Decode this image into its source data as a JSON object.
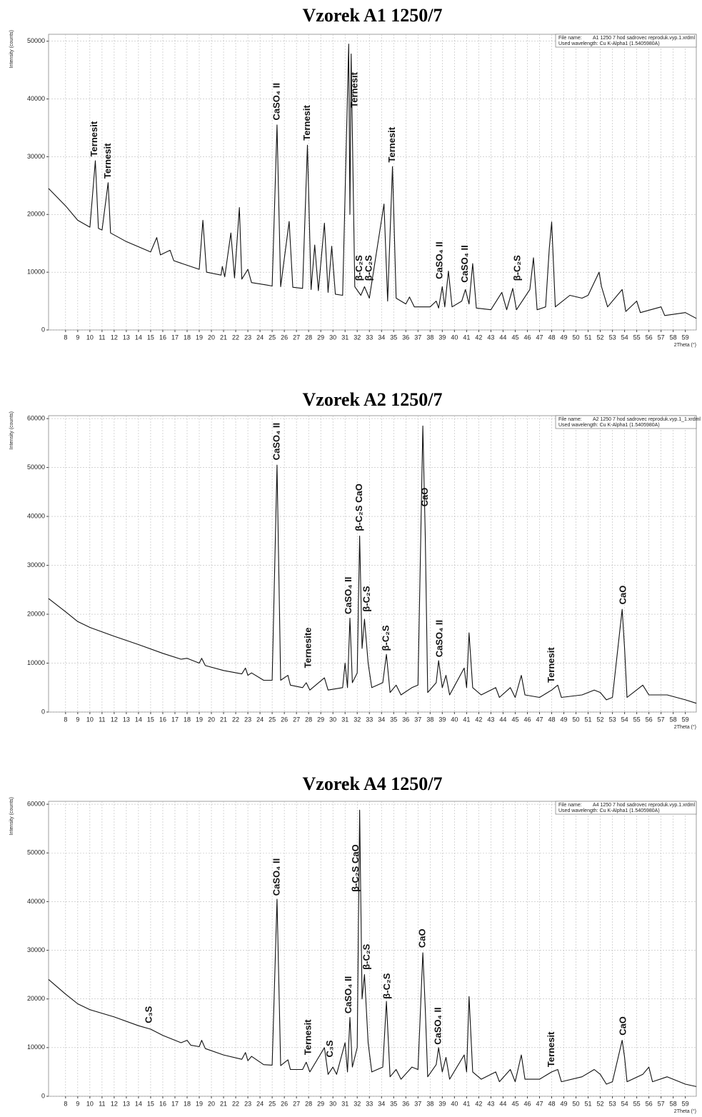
{
  "chart_data": [
    {
      "type": "line",
      "title": "Vzorek A1 1250/7",
      "x_label": "2Theta (°)",
      "y_label": "Intensity (counts)",
      "file_label": "File name:",
      "file_name": "A1 1250 7 hod sadrovec reproduk.vyp.1.xrdml",
      "wavelength": "Used wavelength: Cu K-Alpha1 (1.5405980A)",
      "xlim": [
        6.6,
        59.9
      ],
      "ylim": [
        0,
        51200
      ],
      "xticks": [
        8,
        9,
        10,
        11,
        12,
        13,
        14,
        15,
        16,
        17,
        18,
        19,
        20,
        21,
        22,
        23,
        24,
        25,
        26,
        27,
        28,
        29,
        30,
        31,
        32,
        33,
        34,
        35,
        36,
        37,
        38,
        39,
        40,
        41,
        42,
        43,
        44,
        45,
        46,
        47,
        48,
        49,
        50,
        51,
        52,
        53,
        54,
        55,
        56,
        57,
        58,
        59
      ],
      "yticks": [
        0,
        10000,
        20000,
        30000,
        40000,
        50000
      ],
      "grid": true,
      "color": "#111",
      "x": [
        6.6,
        8,
        9,
        10,
        10.45,
        10.7,
        11,
        11.5,
        11.7,
        13,
        15,
        15.5,
        15.8,
        16.6,
        16.9,
        18,
        19,
        19.3,
        19.6,
        20.8,
        20.9,
        21.1,
        21.6,
        21.9,
        22.3,
        22.5,
        23,
        23.3,
        24.5,
        25,
        25.4,
        25.7,
        26.4,
        26.7,
        27.5,
        27.9,
        28.2,
        28.5,
        28.8,
        29.3,
        29.6,
        29.9,
        30.2,
        30.8,
        31.3,
        31.4,
        31.5,
        31.8,
        32.3,
        32.6,
        33,
        34.2,
        34.5,
        34.9,
        35.2,
        36,
        36.3,
        36.7,
        38,
        38.5,
        38.7,
        39,
        39.2,
        39.5,
        39.8,
        40.6,
        40.9,
        41.2,
        41.5,
        41.8,
        43,
        43.9,
        44.3,
        44.8,
        45.1,
        46.2,
        46.5,
        46.8,
        47.5,
        47.8,
        48,
        48.3,
        49.5,
        50.5,
        51,
        51.9,
        52.1,
        52.6,
        53.8,
        54.1,
        55,
        55.3,
        57,
        57.3,
        59,
        59.9
      ],
      "values": [
        24500,
        21500,
        19000,
        17800,
        29300,
        17600,
        17300,
        25500,
        16800,
        15300,
        13500,
        16000,
        13000,
        13800,
        12000,
        11200,
        10500,
        19000,
        10000,
        9500,
        11000,
        9200,
        16800,
        9000,
        21200,
        8800,
        10500,
        8200,
        7800,
        7600,
        35500,
        7500,
        18800,
        7400,
        7200,
        32000,
        7000,
        14700,
        6800,
        18500,
        6500,
        14500,
        6200,
        6000,
        49500,
        20000,
        47800,
        7500,
        6000,
        7500,
        5500,
        21800,
        5000,
        28300,
        5500,
        4500,
        5700,
        4000,
        4000,
        5000,
        3800,
        7500,
        4000,
        10200,
        4000,
        5000,
        7000,
        4500,
        11500,
        3800,
        3500,
        6500,
        3500,
        7200,
        3500,
        7000,
        12500,
        3500,
        4000,
        14000,
        18700,
        4000,
        6000,
        5500,
        6000,
        10000,
        7500,
        4000,
        7000,
        3200,
        5000,
        3000,
        4000,
        2500,
        3000,
        2000
      ],
      "annotations": [
        {
          "text": "Ternesit",
          "x": 10.4,
          "y": 30000
        },
        {
          "text": "Ternesit",
          "x": 11.5,
          "y": 26200
        },
        {
          "text": "CaSO₄ II",
          "x": 25.4,
          "y": 36300
        },
        {
          "text": "Ternesit",
          "x": 27.9,
          "y": 32800
        },
        {
          "text": "Ternesit",
          "x": 31.8,
          "y": 38500
        },
        {
          "text": "β-C₂S",
          "x": 32.2,
          "y": 8500
        },
        {
          "text": "β-C₂S",
          "x": 33,
          "y": 8500
        },
        {
          "text": "Ternesit",
          "x": 34.9,
          "y": 29000
        },
        {
          "text": "CaSO₄ II",
          "x": 38.8,
          "y": 8800
        },
        {
          "text": "CaSO₄ II",
          "x": 40.9,
          "y": 8200
        },
        {
          "text": "β-C₂S",
          "x": 45.2,
          "y": 8500
        }
      ]
    },
    {
      "type": "line",
      "title": "Vzorek A2 1250/7",
      "x_label": "2Theta (°)",
      "y_label": "Intensity (counts)",
      "file_label": "File name:",
      "file_name": "A2 1250 7 hod sadrovec reproduk.vyp.1_1.xrdml",
      "wavelength": "Used wavelength: Cu K-Alpha1 (1.5405980A)",
      "xlim": [
        6.6,
        59.9
      ],
      "ylim": [
        0,
        60600
      ],
      "xticks": [
        8,
        9,
        10,
        11,
        12,
        13,
        14,
        15,
        16,
        17,
        18,
        19,
        20,
        21,
        22,
        23,
        24,
        25,
        26,
        27,
        28,
        29,
        30,
        31,
        32,
        33,
        34,
        35,
        36,
        37,
        38,
        39,
        40,
        41,
        42,
        43,
        44,
        45,
        46,
        47,
        48,
        49,
        50,
        51,
        52,
        53,
        54,
        55,
        56,
        57,
        58,
        59
      ],
      "yticks": [
        0,
        10000,
        20000,
        30000,
        40000,
        50000,
        60000
      ],
      "grid": true,
      "color": "#111",
      "x": [
        6.6,
        8,
        9,
        10,
        12,
        14,
        16,
        17.5,
        18,
        19,
        19.2,
        19.5,
        21,
        22.5,
        22.8,
        23,
        23.3,
        24.3,
        25,
        25.4,
        25.7,
        26.3,
        26.5,
        27.5,
        27.8,
        28.1,
        29.3,
        29.6,
        30.8,
        31,
        31.2,
        31.4,
        31.6,
        32,
        32.2,
        32.4,
        32.6,
        32.9,
        33.2,
        34.1,
        34.4,
        34.7,
        35.2,
        35.6,
        36.5,
        37,
        37.4,
        37.6,
        37.8,
        38.5,
        38.7,
        39,
        39.3,
        39.6,
        40.8,
        41,
        41.2,
        41.5,
        42.2,
        43.4,
        43.7,
        44.6,
        45,
        45.5,
        45.8,
        47,
        48,
        48.5,
        48.8,
        50.5,
        51.5,
        52,
        52.5,
        53,
        53.8,
        54,
        54.2,
        55.5,
        56,
        57.5,
        59,
        59.9
      ],
      "values": [
        23200,
        20500,
        18500,
        17300,
        15500,
        13800,
        12000,
        10800,
        11000,
        10000,
        11000,
        9500,
        8500,
        7800,
        9000,
        7500,
        8000,
        6500,
        6500,
        50500,
        6500,
        7500,
        5500,
        5000,
        6000,
        4500,
        7000,
        4500,
        5000,
        10000,
        5000,
        19200,
        6000,
        8000,
        36000,
        13000,
        19000,
        10000,
        5000,
        6000,
        11800,
        4000,
        5500,
        3500,
        5000,
        5500,
        58500,
        36000,
        4000,
        6000,
        10500,
        5000,
        7500,
        3500,
        9000,
        5000,
        16200,
        5000,
        3500,
        5000,
        3000,
        5000,
        3000,
        7500,
        3500,
        3000,
        4500,
        5500,
        3000,
        3500,
        4500,
        4000,
        2500,
        3000,
        21000,
        13000,
        3000,
        5500,
        3500,
        3500,
        2500,
        1800
      ],
      "annotations": [
        {
          "text": "CaSO₄ II",
          "x": 25.4,
          "y": 51500
        },
        {
          "text": "Ternesite",
          "x": 28,
          "y": 9000
        },
        {
          "text": "CaSO₄ II",
          "x": 31.3,
          "y": 20000
        },
        {
          "text": "β-C₂S CaO",
          "x": 32.2,
          "y": 37000
        },
        {
          "text": "β-C₂S",
          "x": 32.8,
          "y": 20500
        },
        {
          "text": "β-C₂S",
          "x": 34.4,
          "y": 12500
        },
        {
          "text": "CaO",
          "x": 37.6,
          "y": 42000
        },
        {
          "text": "CaSO₄ II",
          "x": 38.8,
          "y": 11200
        },
        {
          "text": "Ternesit",
          "x": 48,
          "y": 6000
        },
        {
          "text": "CaO",
          "x": 53.9,
          "y": 22000
        }
      ]
    },
    {
      "type": "line",
      "title": "Vzorek A4 1250/7",
      "x_label": "2Theta (°)",
      "y_label": "Intensity (counts)",
      "file_label": "File name:",
      "file_name": "A4 1250 7 hod sadrovec reproduk.vyp.1.xrdml",
      "wavelength": "Used wavelength: Cu K-Alpha1 (1.5405980A)",
      "xlim": [
        6.6,
        59.9
      ],
      "ylim": [
        0,
        60600
      ],
      "xticks": [
        8,
        9,
        10,
        11,
        12,
        13,
        14,
        15,
        16,
        17,
        18,
        19,
        20,
        21,
        22,
        23,
        24,
        25,
        26,
        27,
        28,
        29,
        30,
        31,
        32,
        33,
        34,
        35,
        36,
        37,
        38,
        39,
        40,
        41,
        42,
        43,
        44,
        45,
        46,
        47,
        48,
        49,
        50,
        51,
        52,
        53,
        54,
        55,
        56,
        57,
        58,
        59
      ],
      "yticks": [
        0,
        10000,
        20000,
        30000,
        40000,
        50000,
        60000
      ],
      "grid": true,
      "color": "#111",
      "x": [
        6.6,
        8,
        9,
        10,
        12,
        14,
        15,
        16,
        17.5,
        18,
        18.3,
        19,
        19.2,
        19.5,
        21,
        22.5,
        22.8,
        23,
        23.3,
        24.3,
        25,
        25.4,
        25.7,
        26.3,
        26.5,
        27.5,
        27.8,
        28.1,
        29.3,
        29.6,
        30,
        30.3,
        31,
        31.2,
        31.4,
        31.6,
        32,
        32.2,
        32.4,
        32.6,
        32.9,
        33.2,
        34.1,
        34.4,
        34.7,
        35.2,
        35.6,
        36.5,
        37,
        37.4,
        37.6,
        37.8,
        38.5,
        38.7,
        39,
        39.3,
        39.6,
        40.8,
        41,
        41.2,
        41.5,
        42.2,
        43.4,
        43.7,
        44.6,
        45,
        45.5,
        45.8,
        47,
        48,
        48.5,
        48.8,
        50.5,
        51.5,
        52,
        52.5,
        53,
        53.8,
        54,
        54.2,
        55.5,
        56,
        56.3,
        57.5,
        59,
        59.9
      ],
      "values": [
        24000,
        21000,
        19000,
        17800,
        16300,
        14500,
        13800,
        12500,
        11000,
        11500,
        10500,
        10200,
        11500,
        9800,
        8500,
        7600,
        9000,
        7300,
        8200,
        6500,
        6400,
        40500,
        6300,
        7500,
        5500,
        5500,
        7000,
        5000,
        10000,
        4500,
        6000,
        4500,
        11000,
        5000,
        16200,
        6000,
        10000,
        58800,
        20000,
        25000,
        11000,
        5000,
        6000,
        19500,
        4000,
        5500,
        3500,
        6000,
        5500,
        29500,
        18000,
        4000,
        6500,
        10000,
        5000,
        8000,
        3500,
        8500,
        5000,
        20500,
        5000,
        3500,
        5000,
        3000,
        5500,
        3000,
        8500,
        3500,
        3500,
        5000,
        5500,
        3000,
        4000,
        5500,
        4500,
        2500,
        3000,
        11500,
        8000,
        3000,
        4500,
        6000,
        3000,
        4000,
        2500,
        2000
      ],
      "annotations": [
        {
          "text": "C₃S",
          "x": 14.9,
          "y": 15000
        },
        {
          "text": "CaSO₄ II",
          "x": 25.4,
          "y": 41200
        },
        {
          "text": "Ternesit",
          "x": 28,
          "y": 8500
        },
        {
          "text": "C₃S",
          "x": 29.8,
          "y": 8000
        },
        {
          "text": "CaSO₄ II",
          "x": 31.3,
          "y": 17000
        },
        {
          "text": "β-C₂S CaO",
          "x": 31.9,
          "y": 42000
        },
        {
          "text": "β-C₂S",
          "x": 32.8,
          "y": 26000
        },
        {
          "text": "β-C₂S",
          "x": 34.5,
          "y": 20000
        },
        {
          "text": "CaO",
          "x": 37.4,
          "y": 30500
        },
        {
          "text": "CaSO₄ II",
          "x": 38.7,
          "y": 10600
        },
        {
          "text": "Ternesit",
          "x": 48,
          "y": 6000
        },
        {
          "text": "CaO",
          "x": 53.9,
          "y": 12500
        }
      ]
    }
  ]
}
